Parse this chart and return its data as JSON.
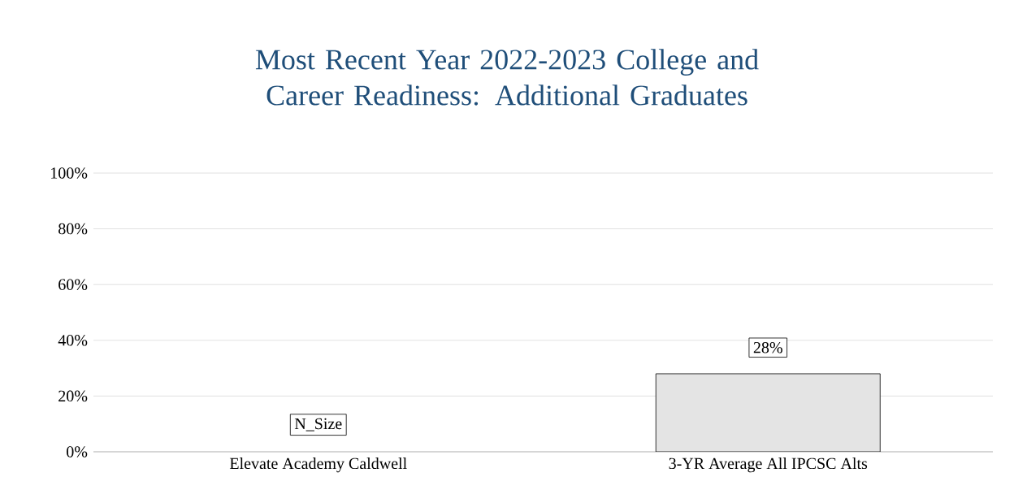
{
  "chart_data": {
    "type": "bar",
    "title": "Most Recent Year 2022-2023 College and Career Readiness:  Additional Graduates",
    "categories": [
      "Elevate Academy Caldwell",
      "3-YR Average All IPCSC Alts"
    ],
    "values": [
      null,
      28
    ],
    "value_labels": [
      "N_Size",
      "28%"
    ],
    "color": "#e4e4e4",
    "ylim": [
      0,
      100
    ],
    "yticks": [
      {
        "value": 0,
        "label": "0%"
      },
      {
        "value": 20,
        "label": "20%"
      },
      {
        "value": 40,
        "label": "40%"
      },
      {
        "value": 60,
        "label": "60%"
      },
      {
        "value": 80,
        "label": "80%"
      },
      {
        "value": 100,
        "label": "100%"
      }
    ],
    "grid": "y"
  }
}
